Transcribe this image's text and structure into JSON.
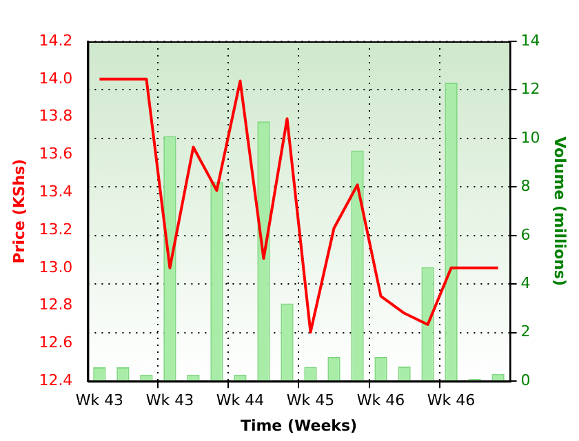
{
  "chart_data": {
    "type": "bar",
    "categories": [
      "Wk 43",
      null,
      null,
      "Wk 43",
      null,
      null,
      "Wk 44",
      null,
      null,
      "Wk 45",
      null,
      null,
      "Wk 46",
      null,
      null,
      "Wk 46",
      null,
      null
    ],
    "series": [
      {
        "type": "line",
        "color": "#ff0000",
        "axis": "y",
        "values": [
          14.0,
          14.0,
          14.0,
          13.0,
          13.64,
          13.41,
          13.99,
          13.05,
          13.79,
          12.66,
          13.21,
          13.44,
          12.85,
          12.76,
          12.7,
          13.0,
          13.0,
          13.0
        ]
      },
      {
        "color": "#a8eca8",
        "axis": "y2",
        "values": [
          0.57,
          0.57,
          0.27,
          10.1,
          0.27,
          8.2,
          0.27,
          10.7,
          3.2,
          0.59,
          1.0,
          9.5,
          1.0,
          0.6,
          4.7,
          12.3,
          0.1,
          0.3
        ]
      }
    ],
    "xlabel": "Time (Weeks)",
    "ylabel": "Price (KShs)",
    "y2label": "Volume (millions)",
    "ylim": [
      12.4,
      14.2
    ],
    "yticks": [
      12.4,
      12.6,
      12.8,
      {
        "value": 13,
        "label": "13.0"
      },
      13.2,
      13.4,
      13.6,
      13.8,
      {
        "value": 14,
        "label": "14.0"
      },
      14.2
    ],
    "y2lim": [
      0,
      14
    ],
    "y2ticks": [
      0,
      2,
      4,
      6,
      8,
      10,
      12,
      14
    ],
    "grid": true,
    "marker": "none"
  }
}
